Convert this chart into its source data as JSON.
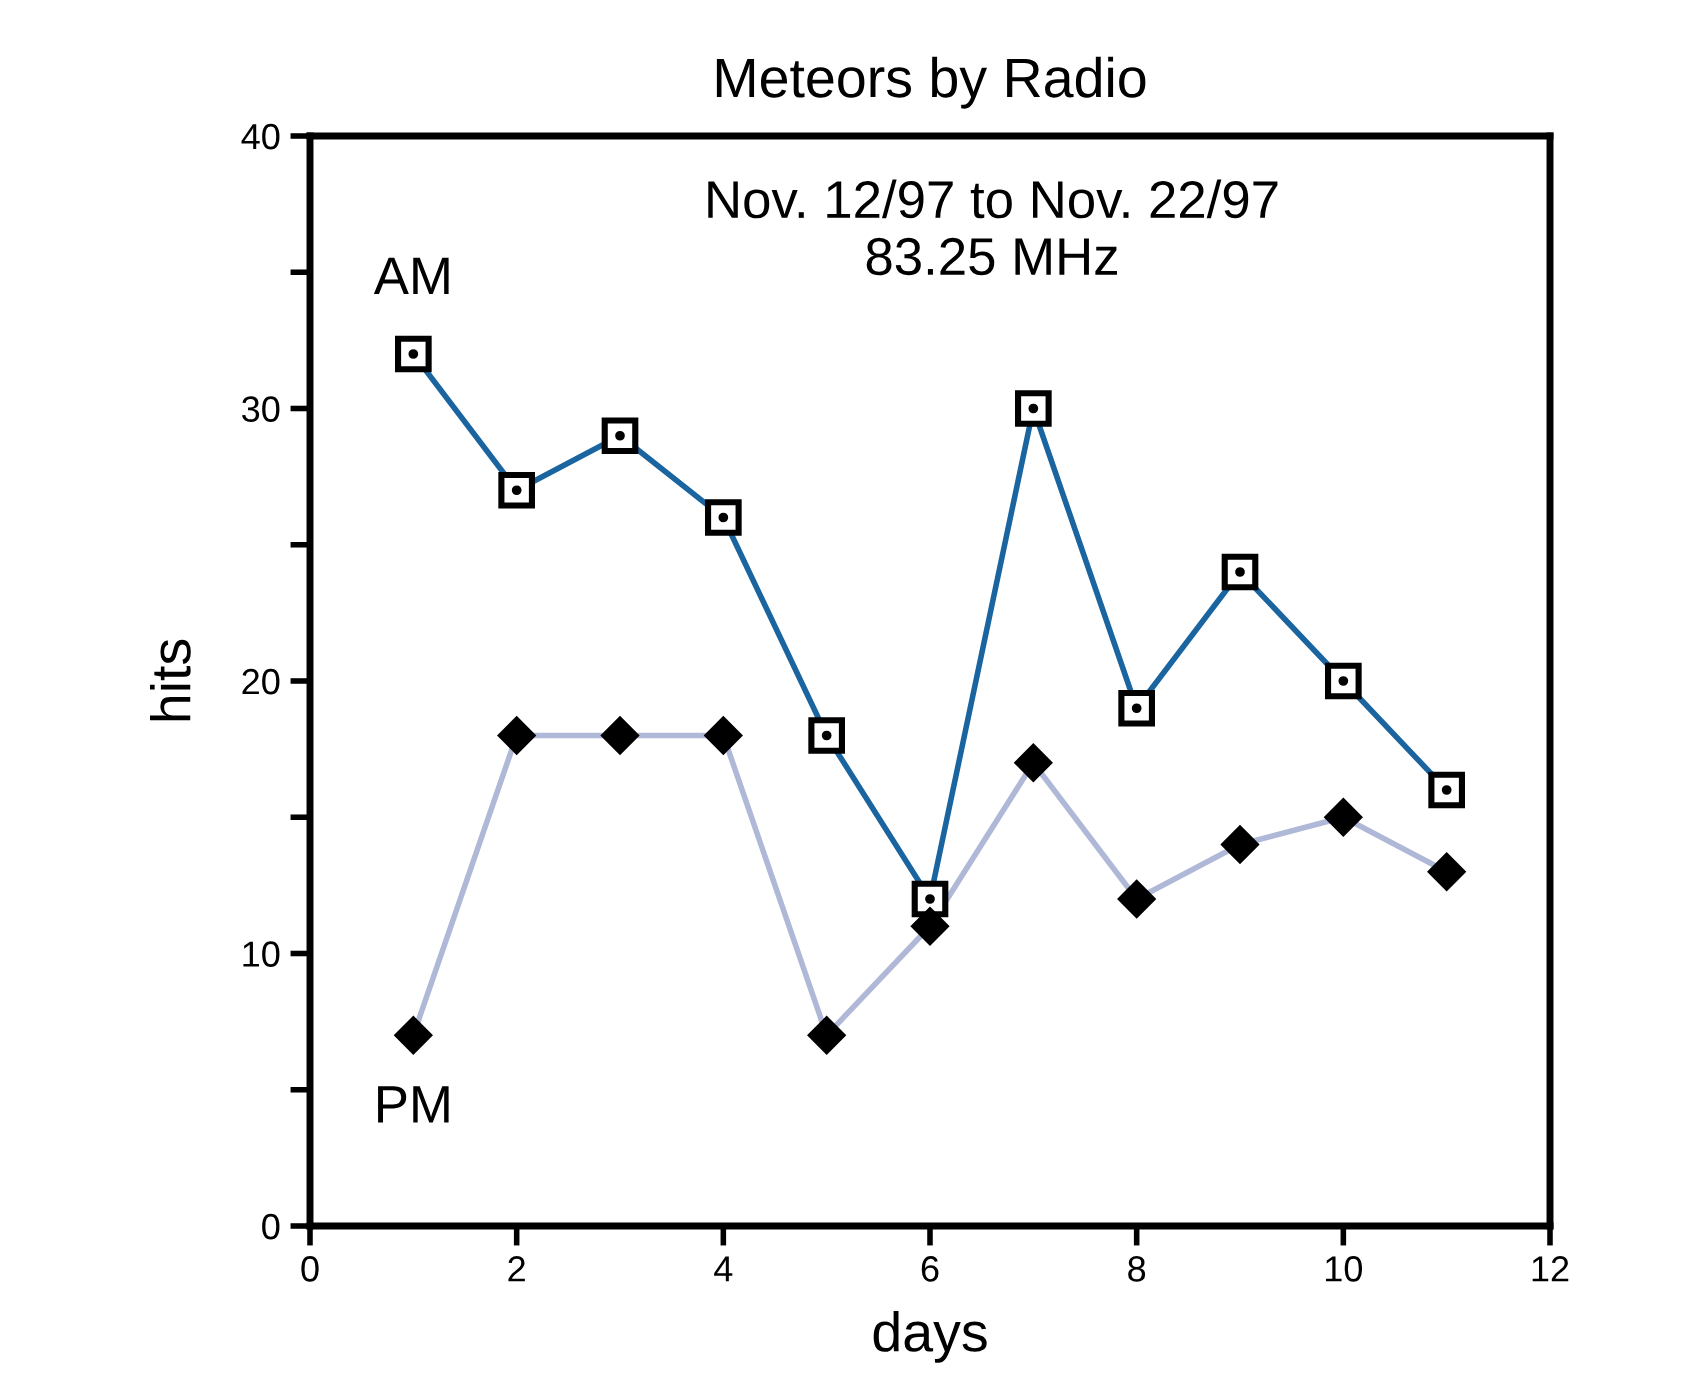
{
  "chart_data": {
    "type": "line",
    "title": "Meteors by Radio",
    "xlabel": "days",
    "ylabel": "hits",
    "annotations": [
      "Nov. 12/97 to Nov. 22/97\n83.25 MHz"
    ],
    "x": [
      1,
      2,
      3,
      4,
      5,
      6,
      7,
      8,
      9,
      10,
      11
    ],
    "series": [
      {
        "name": "AM",
        "color": "#1a64a0",
        "marker": "square",
        "values": [
          32,
          27,
          29,
          26,
          18,
          12,
          30,
          19,
          24,
          20,
          16
        ]
      },
      {
        "name": "PM",
        "color": "#b0b8d8",
        "marker": "diamond",
        "values": [
          7,
          18,
          18,
          18,
          7,
          11,
          17,
          12,
          14,
          15,
          13
        ]
      }
    ],
    "xlim": [
      0,
      12
    ],
    "xticks": [
      0,
      2,
      4,
      6,
      8,
      10,
      12
    ],
    "ylim": [
      0,
      40
    ],
    "yticks": [
      0,
      {
        "value": 5,
        "label": null
      },
      10,
      {
        "value": 15,
        "label": null
      },
      20,
      {
        "value": 25,
        "label": null
      },
      30,
      {
        "value": 35,
        "label": null
      },
      40
    ],
    "grid": false,
    "legend": false
  }
}
